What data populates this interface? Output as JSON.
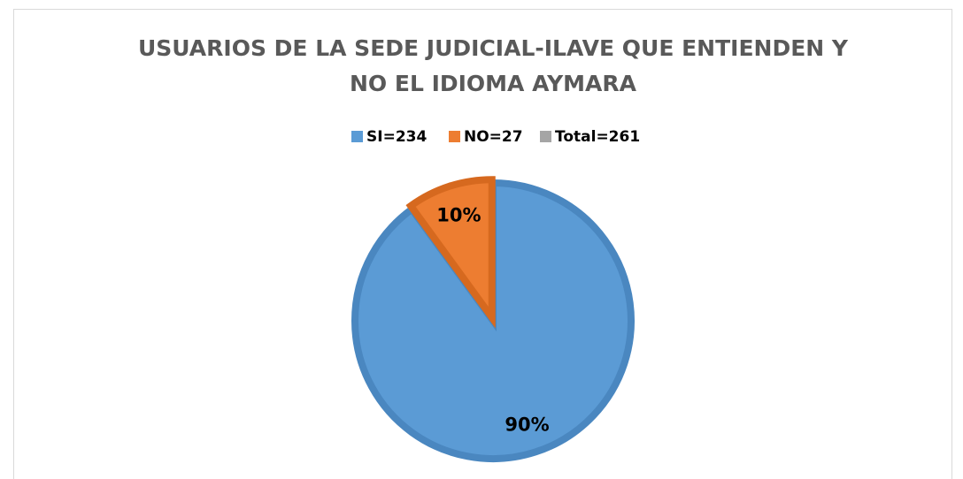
{
  "chart_data": {
    "type": "pie",
    "title": "USUARIOS DE LA SEDE JUDICIAL-ILAVE QUE ENTIENDEN Y NO EL IDIOMA AYMARA",
    "categories": [
      "SI=234",
      "NO=27",
      "Total=261"
    ],
    "values": [
      90,
      10,
      0
    ],
    "value_labels": [
      "90%",
      "10%",
      null
    ],
    "colors": [
      "#5b9bd5",
      "#ed7d31",
      "#a5a5a5"
    ],
    "legend": "top"
  }
}
